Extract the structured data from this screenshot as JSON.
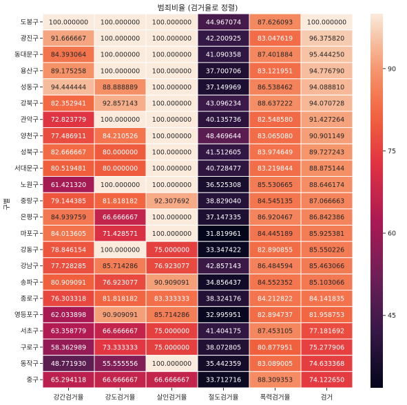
{
  "chart_data": {
    "type": "heatmap",
    "title": "범죄비율 (검거율로 정렬)",
    "xlabel": "",
    "ylabel": "구별",
    "columns": [
      "강간검거율",
      "강도검거율",
      "살인검거율",
      "절도검거율",
      "폭력검거율",
      "검거"
    ],
    "rows": [
      "도봉구",
      "광진구",
      "동대문구",
      "용산구",
      "성동구",
      "강북구",
      "관악구",
      "양천구",
      "성북구",
      "서대문구",
      "노원구",
      "중랑구",
      "은평구",
      "마포구",
      "강동구",
      "강남구",
      "송파구",
      "종로구",
      "영등포구",
      "서초구",
      "구로구",
      "동작구",
      "중구"
    ],
    "values": [
      [
        100.0,
        100.0,
        100.0,
        44.967074,
        87.626093,
        100.0
      ],
      [
        91.666667,
        100.0,
        100.0,
        42.200925,
        83.047619,
        96.37582
      ],
      [
        84.393064,
        100.0,
        100.0,
        41.090358,
        87.401884,
        95.44425
      ],
      [
        89.175258,
        100.0,
        100.0,
        37.700706,
        83.121951,
        94.77679
      ],
      [
        94.444444,
        88.888889,
        100.0,
        37.149969,
        86.538462,
        94.08881
      ],
      [
        82.352941,
        92.857143,
        100.0,
        43.096234,
        88.637222,
        94.070728
      ],
      [
        72.823779,
        100.0,
        100.0,
        40.135736,
        82.54858,
        91.427264
      ],
      [
        77.486911,
        84.210526,
        100.0,
        48.469644,
        83.06508,
        90.901149
      ],
      [
        82.666667,
        80.0,
        100.0,
        41.512605,
        83.974649,
        89.727243
      ],
      [
        80.519481,
        80.0,
        100.0,
        40.728477,
        83.219844,
        88.875144
      ],
      [
        61.42132,
        100.0,
        100.0,
        36.525308,
        85.530665,
        88.646174
      ],
      [
        79.144385,
        81.818182,
        92.307692,
        38.82904,
        84.545135,
        87.066663
      ],
      [
        84.939759,
        66.666667,
        100.0,
        37.147335,
        86.920467,
        86.842386
      ],
      [
        84.013605,
        71.428571,
        100.0,
        31.819961,
        84.445189,
        85.925381
      ],
      [
        78.846154,
        100.0,
        75.0,
        33.347422,
        82.890855,
        85.550226
      ],
      [
        77.728285,
        85.714286,
        76.923077,
        42.857143,
        86.484594,
        85.463066
      ],
      [
        80.909091,
        76.923077,
        90.909091,
        34.856437,
        84.552352,
        85.103066
      ],
      [
        76.303318,
        81.818182,
        83.333333,
        38.324176,
        84.212822,
        84.141835
      ],
      [
        62.033898,
        90.909091,
        85.714286,
        32.995951,
        82.894737,
        81.958753
      ],
      [
        63.358779,
        66.666667,
        75.0,
        41.404175,
        87.453105,
        77.181692
      ],
      [
        58.362989,
        73.333333,
        75.0,
        38.072805,
        80.877951,
        75.277906
      ],
      [
        48.77193,
        55.555556,
        100.0,
        35.442359,
        83.089005,
        74.633368
      ],
      [
        65.294118,
        66.666667,
        66.666667,
        33.712716,
        88.309353,
        74.12265
      ]
    ],
    "value_format": "6 decimals",
    "colormap": "rocket",
    "vmin": 31.8,
    "vmax": 100,
    "colorbar_ticks": [
      45,
      60,
      75,
      90
    ],
    "grid": "white lines between cells",
    "legend": "colorbar right"
  }
}
